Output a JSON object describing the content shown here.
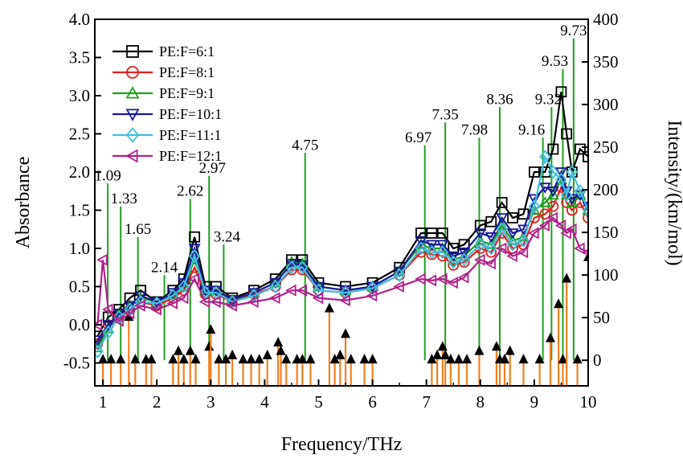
{
  "chart_data": {
    "type": "line",
    "xlabel": "Frequency/THz",
    "ylabel": "Absorbance",
    "y2label": "Intensity/(km/mol)",
    "xlim": [
      0.85,
      10
    ],
    "ylim": [
      -0.8,
      4.0
    ],
    "y2lim": [
      -30,
      400
    ],
    "x_ticks": [
      "1",
      "2",
      "3",
      "4",
      "5",
      "6",
      "7",
      "8",
      "9",
      "10"
    ],
    "y_ticks": [
      "-0.5",
      "0.0",
      "0.5",
      "1.0",
      "1.5",
      "2.0",
      "2.5",
      "3.0",
      "3.5",
      "4.0"
    ],
    "y2_ticks": [
      "0",
      "50",
      "100",
      "150",
      "200",
      "250",
      "300",
      "350",
      "400"
    ],
    "grid": false,
    "legend_position": "top-left",
    "series": [
      {
        "name": "PE:F=6:1",
        "color": "#000000",
        "marker": "square",
        "x": [
          0.9,
          1.1,
          1.3,
          1.5,
          1.7,
          2.0,
          2.3,
          2.5,
          2.7,
          2.9,
          3.1,
          3.4,
          3.8,
          4.2,
          4.5,
          4.7,
          5.0,
          5.5,
          6.0,
          6.5,
          6.9,
          7.1,
          7.3,
          7.5,
          7.7,
          8.0,
          8.2,
          8.4,
          8.6,
          8.8,
          9.0,
          9.2,
          9.35,
          9.5,
          9.6,
          9.7,
          9.85,
          10.0
        ],
        "y": [
          -0.15,
          0.1,
          0.2,
          0.35,
          0.45,
          0.3,
          0.45,
          0.6,
          1.15,
          0.5,
          0.5,
          0.35,
          0.45,
          0.6,
          0.85,
          0.85,
          0.55,
          0.5,
          0.55,
          0.75,
          1.2,
          1.2,
          1.2,
          1.0,
          1.05,
          1.3,
          1.35,
          1.6,
          1.4,
          1.45,
          2.0,
          2.0,
          2.3,
          3.05,
          2.5,
          2.0,
          2.3,
          2.2
        ]
      },
      {
        "name": "PE:F=8:1",
        "color": "#e02020",
        "marker": "circle",
        "x": [
          0.9,
          1.1,
          1.3,
          1.5,
          1.7,
          2.0,
          2.3,
          2.5,
          2.7,
          2.9,
          3.1,
          3.4,
          3.8,
          4.2,
          4.5,
          4.7,
          5.0,
          5.5,
          6.0,
          6.5,
          6.9,
          7.1,
          7.3,
          7.5,
          7.7,
          8.0,
          8.2,
          8.4,
          8.6,
          8.8,
          9.0,
          9.2,
          9.35,
          9.5,
          9.6,
          9.7,
          9.85,
          10.0
        ],
        "y": [
          -0.25,
          0.0,
          0.1,
          0.2,
          0.3,
          0.25,
          0.35,
          0.45,
          0.75,
          0.4,
          0.4,
          0.3,
          0.4,
          0.5,
          0.72,
          0.72,
          0.45,
          0.42,
          0.48,
          0.65,
          0.95,
          0.92,
          0.9,
          0.78,
          0.82,
          1.0,
          0.95,
          1.2,
          1.0,
          1.05,
          1.4,
          1.45,
          1.55,
          1.8,
          1.6,
          1.5,
          1.6,
          1.4
        ]
      },
      {
        "name": "PE:F=9:1",
        "color": "#20a020",
        "marker": "triangle-up",
        "x": [
          0.9,
          1.1,
          1.3,
          1.5,
          1.7,
          2.0,
          2.3,
          2.5,
          2.7,
          2.9,
          3.1,
          3.4,
          3.8,
          4.2,
          4.5,
          4.7,
          5.0,
          5.5,
          6.0,
          6.5,
          6.9,
          7.1,
          7.3,
          7.5,
          7.7,
          8.0,
          8.2,
          8.4,
          8.6,
          8.8,
          9.0,
          9.2,
          9.35,
          9.5,
          9.6,
          9.7,
          9.85,
          10.0
        ],
        "y": [
          -0.3,
          -0.05,
          0.15,
          0.25,
          0.35,
          0.3,
          0.4,
          0.5,
          0.85,
          0.45,
          0.45,
          0.32,
          0.42,
          0.55,
          0.82,
          0.8,
          0.5,
          0.45,
          0.5,
          0.7,
          1.05,
          1.0,
          1.0,
          0.85,
          0.9,
          1.1,
          1.05,
          1.3,
          1.1,
          1.15,
          1.5,
          1.6,
          1.7,
          1.9,
          1.7,
          1.6,
          1.7,
          1.5
        ]
      },
      {
        "name": "PE:F=10:1",
        "color": "#1a1a9a",
        "marker": "triangle-down",
        "x": [
          0.9,
          1.1,
          1.3,
          1.5,
          1.7,
          2.0,
          2.3,
          2.5,
          2.7,
          2.9,
          3.1,
          3.4,
          3.8,
          4.2,
          4.5,
          4.7,
          5.0,
          5.5,
          6.0,
          6.5,
          6.9,
          7.1,
          7.3,
          7.5,
          7.7,
          8.0,
          8.2,
          8.4,
          8.6,
          8.8,
          9.0,
          9.2,
          9.35,
          9.5,
          9.6,
          9.7,
          9.85,
          10.0
        ],
        "y": [
          -0.2,
          0.0,
          0.15,
          0.25,
          0.38,
          0.3,
          0.42,
          0.55,
          1.0,
          0.45,
          0.45,
          0.33,
          0.42,
          0.55,
          0.8,
          0.78,
          0.5,
          0.45,
          0.5,
          0.7,
          1.1,
          1.05,
          1.05,
          0.9,
          0.95,
          1.2,
          1.15,
          1.4,
          1.2,
          1.25,
          1.65,
          1.8,
          1.75,
          2.0,
          1.75,
          1.65,
          1.7,
          1.55
        ]
      },
      {
        "name": "PE:F=11:1",
        "color": "#40bfe0",
        "marker": "diamond",
        "x": [
          0.9,
          1.1,
          1.3,
          1.5,
          1.7,
          2.0,
          2.3,
          2.5,
          2.7,
          2.9,
          3.1,
          3.4,
          3.8,
          4.2,
          4.5,
          4.7,
          5.0,
          5.5,
          6.0,
          6.5,
          6.9,
          7.1,
          7.3,
          7.5,
          7.7,
          8.0,
          8.2,
          8.4,
          8.6,
          8.8,
          9.0,
          9.2,
          9.35,
          9.5,
          9.6,
          9.7,
          9.85,
          10.0
        ],
        "y": [
          -0.35,
          -0.1,
          0.1,
          0.2,
          0.3,
          0.28,
          0.38,
          0.5,
          0.9,
          0.42,
          0.42,
          0.3,
          0.38,
          0.5,
          0.75,
          0.75,
          0.45,
          0.42,
          0.48,
          0.65,
          1.0,
          0.95,
          0.95,
          0.82,
          0.85,
          1.05,
          1.0,
          1.25,
          1.05,
          1.1,
          1.55,
          2.2,
          2.0,
          1.9,
          1.7,
          2.0,
          1.75,
          1.5
        ]
      },
      {
        "name": "PE:F=12:1",
        "color": "#b0208a",
        "marker": "triangle-left",
        "x": [
          0.9,
          1.0,
          1.1,
          1.3,
          1.5,
          1.7,
          2.0,
          2.3,
          2.5,
          2.7,
          2.9,
          3.1,
          3.4,
          3.8,
          4.2,
          4.5,
          4.7,
          5.0,
          5.5,
          6.0,
          6.5,
          6.9,
          7.1,
          7.3,
          7.5,
          7.7,
          8.0,
          8.2,
          8.4,
          8.6,
          8.8,
          9.0,
          9.2,
          9.35,
          9.5,
          9.6,
          9.7,
          9.85,
          10.0
        ],
        "y": [
          0.0,
          0.85,
          0.2,
          0.05,
          0.15,
          0.25,
          0.2,
          0.28,
          0.35,
          0.6,
          0.3,
          0.3,
          0.25,
          0.3,
          0.35,
          0.45,
          0.45,
          0.35,
          0.32,
          0.38,
          0.5,
          0.6,
          0.58,
          0.6,
          0.55,
          0.62,
          0.85,
          0.8,
          1.0,
          0.9,
          0.95,
          1.2,
          1.3,
          1.4,
          1.3,
          1.2,
          1.25,
          1.0,
          0.95
        ]
      }
    ],
    "stick_series": {
      "color": "#f08020",
      "marker": "filled-triangle",
      "axis": "y2",
      "x": [
        1.0,
        1.15,
        1.33,
        1.48,
        1.6,
        1.8,
        1.9,
        2.3,
        2.4,
        2.5,
        2.62,
        2.72,
        2.97,
        3.0,
        3.15,
        3.28,
        3.4,
        3.6,
        3.75,
        3.9,
        4.05,
        4.25,
        4.3,
        4.4,
        4.6,
        4.7,
        4.85,
        5.2,
        5.3,
        5.4,
        5.5,
        5.6,
        5.85,
        6.0,
        7.1,
        7.2,
        7.3,
        7.35,
        7.45,
        7.6,
        7.75,
        7.98,
        8.3,
        8.36,
        8.45,
        8.55,
        8.8,
        9.1,
        9.3,
        9.45,
        9.53,
        9.6,
        9.8,
        10.0
      ],
      "y": [
        0,
        0,
        0,
        50,
        0,
        0,
        0,
        0,
        10,
        0,
        10,
        0,
        15,
        35,
        0,
        0,
        5,
        0,
        0,
        0,
        5,
        20,
        10,
        0,
        0,
        0,
        0,
        60,
        0,
        5,
        30,
        0,
        0,
        0,
        0,
        5,
        15,
        5,
        0,
        0,
        0,
        10,
        15,
        0,
        0,
        10,
        0,
        0,
        25,
        65,
        0,
        95,
        0,
        120
      ]
    },
    "peak_lines": {
      "color": "#20a020",
      "x": [
        1.09,
        1.33,
        1.65,
        2.14,
        2.62,
        2.97,
        3.24,
        4.75,
        6.97,
        7.35,
        7.98,
        8.36,
        9.16,
        9.32,
        9.53,
        9.73
      ],
      "top": [
        1.85,
        1.55,
        1.15,
        0.65,
        1.65,
        1.95,
        1.05,
        2.25,
        2.35,
        2.65,
        2.45,
        2.85,
        2.45,
        2.85,
        3.35,
        3.75
      ],
      "labels": [
        "1.09",
        "1.33",
        "1.65",
        "2.14",
        "2.62",
        "2.97",
        "3.24",
        "4.75",
        "6.97",
        "7.35",
        "7.98",
        "8.36",
        "9.16",
        "9.32",
        "9.53",
        "9.73"
      ]
    }
  }
}
